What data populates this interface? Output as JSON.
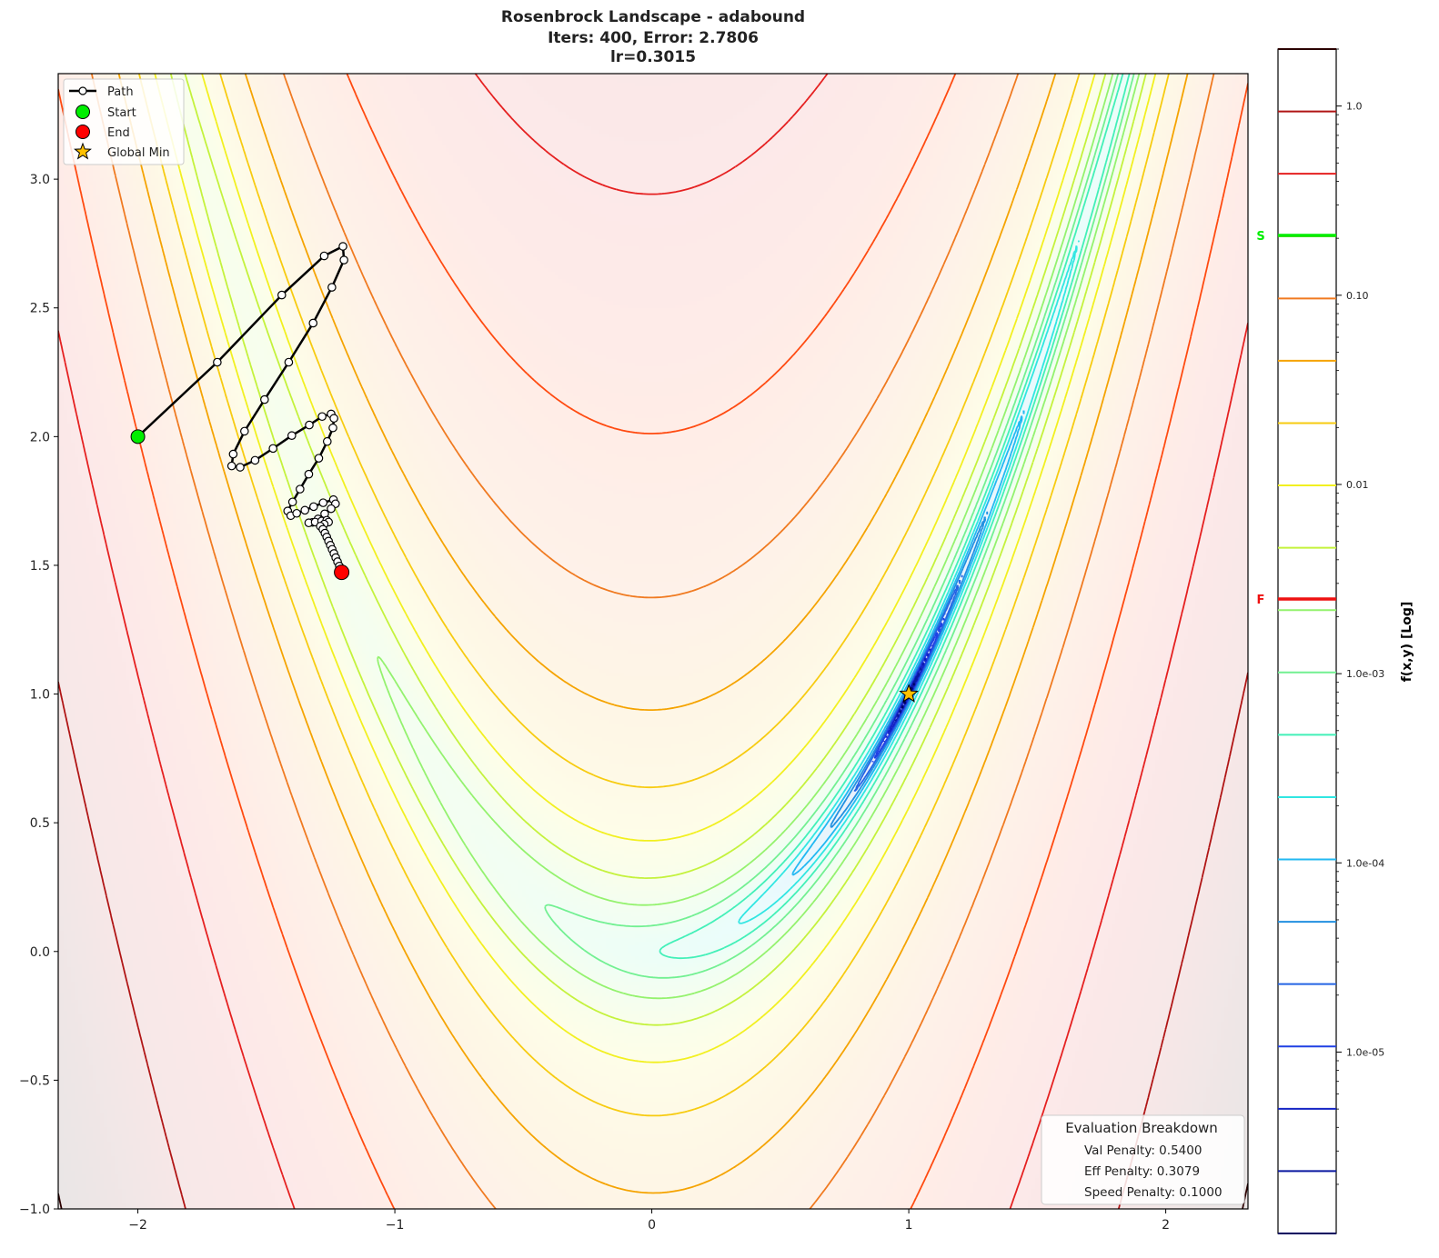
{
  "chart_data": {
    "type": "contour",
    "function": "Rosenbrock",
    "title_lines": [
      "Rosenbrock Landscape - adabound",
      "Iters: 400, Error: 2.7806",
      "lr=0.3015"
    ],
    "xlim": [
      -2.31,
      2.32
    ],
    "ylim": [
      -1.0,
      3.41
    ],
    "xticks": [
      -2,
      -1,
      0,
      1,
      2
    ],
    "xtick_labels": [
      "−2",
      "−1",
      "0",
      "1",
      "2"
    ],
    "yticks": [
      -1.0,
      -0.5,
      0.0,
      0.5,
      1.0,
      1.5,
      2.0,
      2.5,
      3.0
    ],
    "ytick_labels": [
      "−1.0",
      "−0.5",
      "0.0",
      "0.5",
      "1.0",
      "1.5",
      "2.0",
      "2.5",
      "3.0"
    ],
    "grid": false,
    "contour_levels_count": 20,
    "level_colors": [
      "#2a0000",
      "#b01515",
      "#e52020",
      "#ff4a10",
      "#f07a20",
      "#f5a300",
      "#f7cb10",
      "#f2f020",
      "#c4f23c",
      "#94f26e",
      "#72f092",
      "#42f0b8",
      "#30e6e2",
      "#22b8f2",
      "#2290e0",
      "#2464e4",
      "#2040e4",
      "#1424c4",
      "#0a18a0",
      "#000060"
    ],
    "colorbar": {
      "label": "f(x,y) [Log]",
      "scale": "log",
      "range": [
        1.1e-06,
        2.0
      ],
      "ticks": [
        1.0,
        0.1,
        0.01,
        0.001,
        0.0001,
        1e-05
      ],
      "tick_labels": [
        "1.0",
        "0.10",
        "0.01",
        "1.0e-03",
        "1.0e-04",
        "1.0e-05"
      ],
      "start_marker": {
        "label": "S",
        "value": 0.207,
        "color": "#00ee00"
      },
      "end_marker": {
        "label": "F",
        "value": 0.00248,
        "color": "#ee1111"
      }
    },
    "path": {
      "name": "Path",
      "points": [
        [
          -2.0,
          2.0
        ],
        [
          -1.691,
          2.289
        ],
        [
          -1.44,
          2.55
        ],
        [
          -1.275,
          2.702
        ],
        [
          -1.202,
          2.739
        ],
        [
          -1.198,
          2.686
        ],
        [
          -1.245,
          2.58
        ],
        [
          -1.318,
          2.441
        ],
        [
          -1.413,
          2.289
        ],
        [
          -1.507,
          2.144
        ],
        [
          -1.585,
          2.021
        ],
        [
          -1.629,
          1.932
        ],
        [
          -1.635,
          1.886
        ],
        [
          -1.602,
          1.881
        ],
        [
          -1.544,
          1.908
        ],
        [
          -1.474,
          1.954
        ],
        [
          -1.401,
          2.004
        ],
        [
          -1.333,
          2.045
        ],
        [
          -1.283,
          2.078
        ],
        [
          -1.248,
          2.088
        ],
        [
          -1.237,
          2.071
        ],
        [
          -1.241,
          2.034
        ],
        [
          -1.263,
          1.981
        ],
        [
          -1.296,
          1.916
        ],
        [
          -1.335,
          1.854
        ],
        [
          -1.369,
          1.796
        ],
        [
          -1.398,
          1.746
        ],
        [
          -1.417,
          1.711
        ],
        [
          -1.405,
          1.693
        ],
        [
          -1.382,
          1.702
        ],
        [
          -1.35,
          1.714
        ],
        [
          -1.316,
          1.728
        ],
        [
          -1.279,
          1.743
        ],
        [
          -1.239,
          1.755
        ],
        [
          -1.231,
          1.739
        ],
        [
          -1.248,
          1.72
        ],
        [
          -1.273,
          1.7
        ],
        [
          -1.299,
          1.68
        ],
        [
          -1.32,
          1.667
        ],
        [
          -1.335,
          1.665
        ],
        [
          -1.31,
          1.668
        ],
        [
          -1.285,
          1.672
        ],
        [
          -1.265,
          1.675
        ],
        [
          -1.258,
          1.668
        ],
        [
          -1.275,
          1.66
        ],
        [
          -1.29,
          1.652
        ],
        [
          -1.28,
          1.64
        ],
        [
          -1.272,
          1.625
        ],
        [
          -1.265,
          1.61
        ],
        [
          -1.258,
          1.594
        ],
        [
          -1.251,
          1.578
        ],
        [
          -1.244,
          1.562
        ],
        [
          -1.237,
          1.546
        ],
        [
          -1.23,
          1.53
        ],
        [
          -1.223,
          1.514
        ],
        [
          -1.216,
          1.497
        ],
        [
          -1.21,
          1.482
        ],
        [
          -1.207,
          1.473
        ]
      ]
    },
    "start": {
      "name": "Start",
      "x": -2.0,
      "y": 2.0,
      "color": "#00ee00"
    },
    "end": {
      "name": "End",
      "x": -1.207,
      "y": 1.473,
      "color": "#ff0000"
    },
    "global_min": {
      "name": "Global Min",
      "x": 1.0,
      "y": 1.0,
      "color": "#ffc000"
    },
    "legend": {
      "placement": "upper-left",
      "entries": [
        "Path",
        "Start",
        "End",
        "Global Min"
      ]
    },
    "annotation": {
      "title": "Evaluation Breakdown",
      "lines": [
        "Val Penalty: 0.5400",
        "Eff Penalty: 0.3079",
        "Speed Penalty: 0.1000"
      ],
      "placement": "lower-right"
    }
  }
}
